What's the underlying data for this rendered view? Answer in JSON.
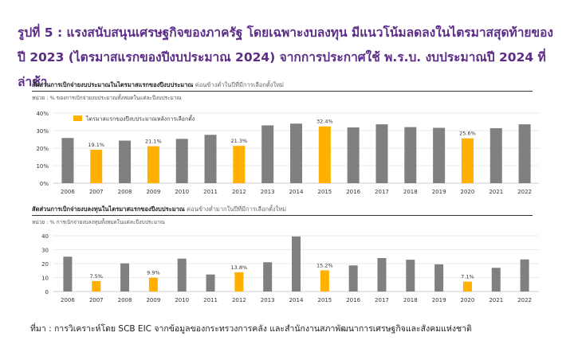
{
  "title": "รูปที่ 5 : แรงสนับสนุนเศรษฐกิจของภาครัฐ โดยเฉพาะงบลงทุน มีแนวโน้มลดลงในไตรมาสสุดท้ายของปี 2023 (ไตรมาสแรกของปีงบประมาณ 2024) จากการประกาศใช้ พ.ร.บ. งบประมาณปี 2024 ที่ล่าช้า",
  "source": "ที่มา : การวิเคราะห์โดย SCB EIC จากข้อมูลของกระทรวงการคลัง และสำนักงานสภาพัฒนาการเศรษฐกิจและสังคมแห่งชาติ",
  "colors": {
    "normal": "#808080",
    "highlight": "#ffb000",
    "title": "#5b2d86"
  },
  "chart_data": [
    {
      "type": "bar",
      "title": "สัดส่วนการเบิกจ่ายงบประมาณในไตรมาสแรกของปีงบประมาณ",
      "subtitle": "ค่อนข้างต่ำในปีที่มีการเลือกตั้งใหม่",
      "unit_note": "หน่วย : % ของการเบิกจ่ายงบประมาณทั้งหมดในแต่ละปีงบประมาณ",
      "legend": "ไตรมาสแรกของปีงบประมาณหลังการเลือกตั้ง",
      "legend_position": "top-left",
      "categories": [
        "2006",
        "2007",
        "2008",
        "2009",
        "2010",
        "2011",
        "2012",
        "2013",
        "2014",
        "2015",
        "2016",
        "2017",
        "2018",
        "2019",
        "2020",
        "2021",
        "2022"
      ],
      "values": [
        25.8,
        19.1,
        24.3,
        21.1,
        25.3,
        27.6,
        21.3,
        33.0,
        34.0,
        32.4,
        31.8,
        33.6,
        32.0,
        31.6,
        25.6,
        31.4,
        33.6
      ],
      "highlight": [
        false,
        true,
        false,
        true,
        false,
        false,
        true,
        false,
        false,
        true,
        false,
        false,
        false,
        false,
        true,
        false,
        false
      ],
      "labels": [
        "",
        "19.1%",
        "",
        "21.1%",
        "",
        "",
        "21.3%",
        "",
        "",
        "32.4%",
        "",
        "",
        "",
        "",
        "25.6%",
        "",
        ""
      ],
      "ylim": [
        0,
        40
      ],
      "yticks": [
        "0%",
        "10%",
        "20%",
        "30%",
        "40%"
      ],
      "grid": true
    },
    {
      "type": "bar",
      "title": "สัดส่วนการเบิกจ่ายงบลงทุนในไตรมาสแรกของปีงบประมาณ",
      "subtitle": "ค่อนข้างต่ำมากในปีที่มีการเลือกตั้งใหม่",
      "unit_note": "หน่วย : % การเบิกจ่ายงบลงทุนทั้งหมดในแต่ละปีงบประมาณ",
      "categories": [
        "2006",
        "2007",
        "2008",
        "2009",
        "2010",
        "2011",
        "2012",
        "2013",
        "2014",
        "2015",
        "2016",
        "2017",
        "2018",
        "2019",
        "2020",
        "2021",
        "2022"
      ],
      "values": [
        25.0,
        7.5,
        20.2,
        9.9,
        23.6,
        12.2,
        13.8,
        21.0,
        39.5,
        15.2,
        18.7,
        24.0,
        22.8,
        19.5,
        7.1,
        17.0,
        23.0
      ],
      "highlight": [
        false,
        true,
        false,
        true,
        false,
        false,
        true,
        false,
        false,
        true,
        false,
        false,
        false,
        false,
        true,
        false,
        false
      ],
      "labels": [
        "",
        "7.5%",
        "",
        "9.9%",
        "",
        "",
        "13.8%",
        "",
        "",
        "15.2%",
        "",
        "",
        "",
        "",
        "7.1%",
        "",
        ""
      ],
      "ylim": [
        0,
        40
      ],
      "yticks": [
        "0",
        "10",
        "20",
        "30",
        "40"
      ],
      "grid": true
    }
  ]
}
